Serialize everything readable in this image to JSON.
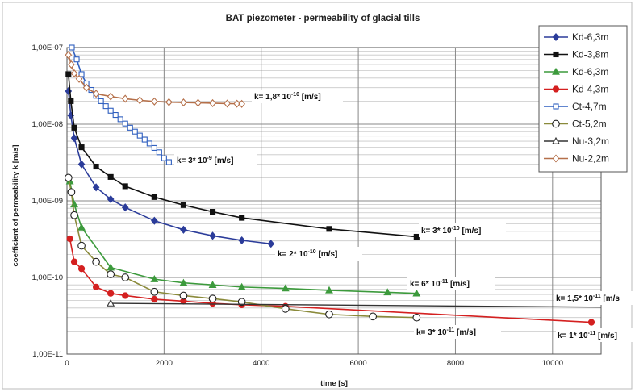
{
  "chart_data": {
    "type": "scatter",
    "title": "BAT piezometer - permeability of glacial tills",
    "xlabel": "time [s]",
    "ylabel": "coefficient of permeability k  [m/s]",
    "xlim": [
      0,
      11000
    ],
    "ylim": [
      1e-11,
      1e-07
    ],
    "y_scale": "log",
    "grid": true,
    "legend_position": "top-right",
    "x_ticks": [
      0,
      2000,
      4000,
      6000,
      8000,
      10000
    ],
    "y_ticks": [
      {
        "value": 1e-07,
        "label": "1,00E-07"
      },
      {
        "value": 1e-08,
        "label": "1,00E-08"
      },
      {
        "value": 1e-09,
        "label": "1,00E-09"
      },
      {
        "value": 1e-10,
        "label": "1,00E-10"
      },
      {
        "value": 1e-11,
        "label": "1,00E-11"
      }
    ],
    "series": [
      {
        "name": "Kd-6,3m",
        "color": "#2b3c9a",
        "marker": "diamond-filled",
        "x": [
          30,
          80,
          150,
          300,
          600,
          900,
          1200,
          1800,
          2400,
          3000,
          3600,
          4200
        ],
        "y": [
          2.7e-08,
          1.3e-08,
          6.6e-09,
          3e-09,
          1.5e-09,
          1.05e-09,
          8.2e-10,
          5.5e-10,
          4.2e-10,
          3.5e-10,
          3.05e-10,
          2.75e-10
        ]
      },
      {
        "name": "Kd-3,8m",
        "color": "#111111",
        "marker": "square-filled",
        "x": [
          30,
          80,
          150,
          300,
          600,
          900,
          1200,
          1800,
          2400,
          3000,
          3600,
          5400,
          7200
        ],
        "y": [
          4.5e-08,
          2e-08,
          9e-09,
          5e-09,
          2.8e-09,
          2.05e-09,
          1.55e-09,
          1.12e-09,
          8.8e-10,
          7.2e-10,
          6e-10,
          4.3e-10,
          3.4e-10
        ]
      },
      {
        "name": "Kd-6,3m",
        "color": "#3c9a3c",
        "marker": "triangle-filled",
        "x": [
          60,
          150,
          300,
          900,
          1800,
          2400,
          3000,
          3600,
          4500,
          5400,
          6600,
          7200
        ],
        "y": [
          1.8e-09,
          9e-10,
          4.5e-10,
          1.35e-10,
          9.5e-11,
          8.5e-11,
          8e-11,
          7.5e-11,
          7.2e-11,
          6.8e-11,
          6.4e-11,
          6.2e-11
        ]
      },
      {
        "name": "Kd-4,3m",
        "color": "#d42020",
        "marker": "circle-filled",
        "x": [
          60,
          150,
          300,
          600,
          900,
          1200,
          1800,
          2400,
          3000,
          3600,
          4500,
          10800
        ],
        "y": [
          3.2e-10,
          1.6e-10,
          1.3e-10,
          7.5e-11,
          6.2e-11,
          5.8e-11,
          5.2e-11,
          4.9e-11,
          4.6e-11,
          4.4e-11,
          4.2e-11,
          2.6e-11
        ]
      },
      {
        "name": "Ct-4,7m",
        "color": "#2f5fbf",
        "marker": "square-open",
        "x": [
          100,
          200,
          300,
          400,
          500,
          600,
          700,
          800,
          900,
          1000,
          1100,
          1200,
          1300,
          1400,
          1500,
          1600,
          1700,
          1800,
          1900,
          2000,
          2100
        ],
        "y": [
          1e-07,
          7e-08,
          4.5e-08,
          3.4e-08,
          2.8e-08,
          2.35e-08,
          2e-08,
          1.72e-08,
          1.5e-08,
          1.32e-08,
          1.16e-08,
          1.02e-08,
          9e-09,
          8e-09,
          7.1e-09,
          6.3e-09,
          5.6e-09,
          4.9e-09,
          4.3e-09,
          3.6e-09,
          3.2e-09
        ]
      },
      {
        "name": "Ct-5,2m",
        "color": "#8a8a3a",
        "marker": "circle-open",
        "x": [
          30,
          90,
          150,
          300,
          600,
          900,
          1200,
          1800,
          2400,
          3000,
          3600,
          4500,
          5400,
          6300,
          7200
        ],
        "y": [
          2e-09,
          1.3e-09,
          6.5e-10,
          2.6e-10,
          1.6e-10,
          1.1e-10,
          1e-10,
          6.5e-11,
          5.8e-11,
          5.3e-11,
          4.8e-11,
          3.9e-11,
          3.3e-11,
          3.1e-11,
          3e-11
        ]
      },
      {
        "name": "Nu-3,2m",
        "color": "#333333",
        "marker": "triangle-open",
        "x": [
          900,
          11000
        ],
        "y": [
          4.6e-11,
          4.1e-11
        ]
      },
      {
        "name": "Nu-2,2m",
        "color": "#b5704a",
        "marker": "diamond-open",
        "x": [
          30,
          90,
          150,
          250,
          400,
          600,
          900,
          1200,
          1500,
          1800,
          2100,
          2400,
          2700,
          3000,
          3300,
          3500,
          3600
        ],
        "y": [
          8e-08,
          6e-08,
          4.6e-08,
          3.9e-08,
          3e-08,
          2.5e-08,
          2.3e-08,
          2.15e-08,
          2.05e-08,
          1.98e-08,
          1.94e-08,
          1.92e-08,
          1.9e-08,
          1.88e-08,
          1.86e-08,
          1.85e-08,
          1.84e-08
        ]
      }
    ],
    "annotations": [
      {
        "id": "a1",
        "base": "k= 1,8* 10",
        "exp": "-10",
        "unit": " [m/s]"
      },
      {
        "id": "a2",
        "base": "k= 3* 10",
        "exp": "-9",
        "unit": " [m/s]"
      },
      {
        "id": "a3",
        "base": "k= 3* 10",
        "exp": "-10",
        "unit": " [m/s]"
      },
      {
        "id": "a4",
        "base": "k= 2* 10",
        "exp": "-10",
        "unit": " [m/s]"
      },
      {
        "id": "a5",
        "base": "k= 6* 10",
        "exp": "-11",
        "unit": " [m/s]"
      },
      {
        "id": "a6",
        "base": "k= 1,5* 10",
        "exp": "-11",
        "unit": " [m/s"
      },
      {
        "id": "a7",
        "base": "k= 3* 10",
        "exp": "-11",
        "unit": " [m/s]"
      },
      {
        "id": "a8",
        "base": "k= 1* 10",
        "exp": "-11",
        "unit": " [m/s]"
      }
    ]
  }
}
